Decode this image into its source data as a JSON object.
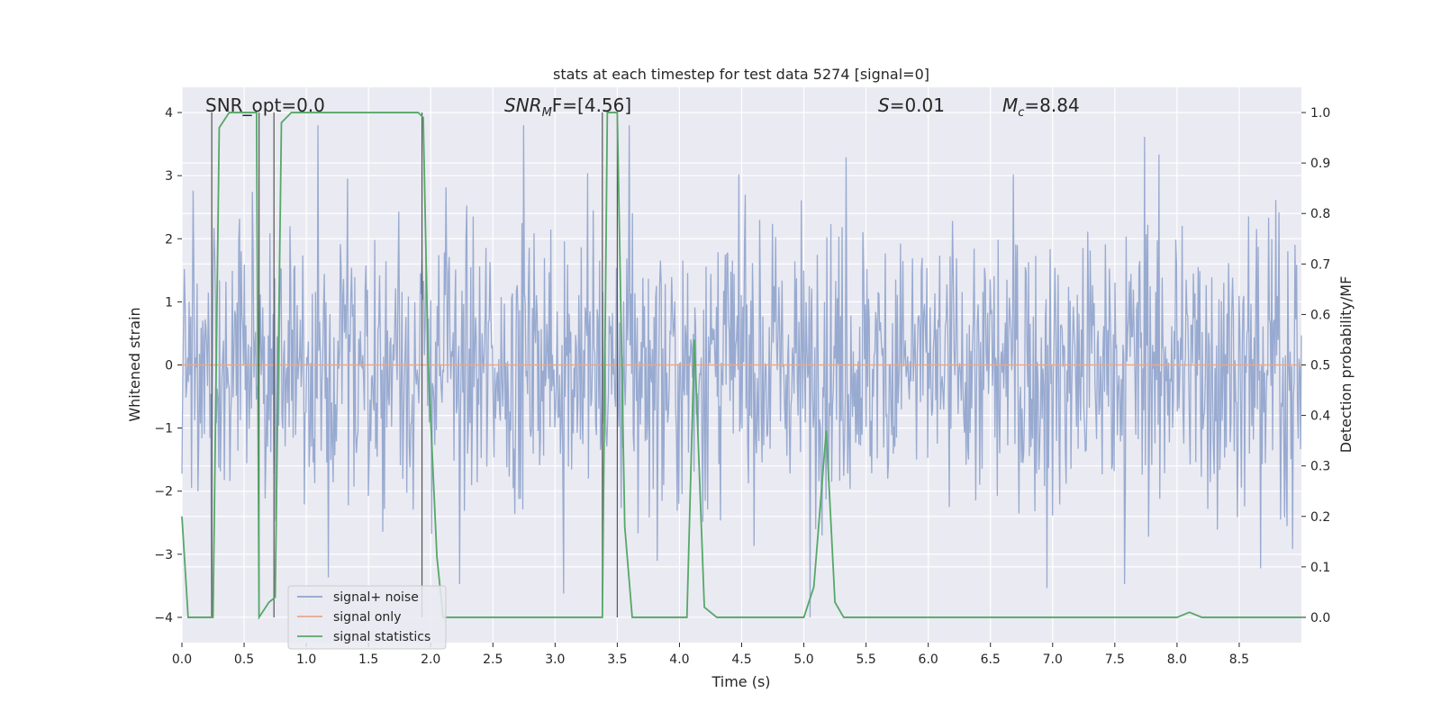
{
  "chart_data": {
    "type": "line",
    "title": "stats at each timestep for test data 5274 [signal=0]",
    "xlabel": "Time (s)",
    "ylabel_left": "Whitened strain",
    "ylabel_right": "Detection probability/MF",
    "xlim": [
      0.0,
      9.0
    ],
    "ylim_left": [
      -4.4,
      4.4
    ],
    "ylim_right": [
      -0.05,
      1.05
    ],
    "x_ticks": [
      "0.0",
      "0.5",
      "1.0",
      "1.5",
      "2.0",
      "2.5",
      "3.0",
      "3.5",
      "4.0",
      "4.5",
      "5.0",
      "5.5",
      "6.0",
      "6.5",
      "7.0",
      "7.5",
      "8.0",
      "8.5"
    ],
    "x_tick_values": [
      0.0,
      0.5,
      1.0,
      1.5,
      2.0,
      2.5,
      3.0,
      3.5,
      4.0,
      4.5,
      5.0,
      5.5,
      6.0,
      6.5,
      7.0,
      7.5,
      8.0,
      8.5
    ],
    "y_left_ticks": [
      "−4",
      "−3",
      "−2",
      "−1",
      "0",
      "1",
      "2",
      "3",
      "4"
    ],
    "y_left_tick_values": [
      -4,
      -3,
      -2,
      -1,
      0,
      1,
      2,
      3,
      4
    ],
    "y_right_ticks": [
      "0.0",
      "0.1",
      "0.2",
      "0.3",
      "0.4",
      "0.5",
      "0.6",
      "0.7",
      "0.8",
      "0.9",
      "1.0"
    ],
    "y_right_tick_values": [
      0.0,
      0.1,
      0.2,
      0.3,
      0.4,
      0.5,
      0.6,
      0.7,
      0.8,
      0.9,
      1.0
    ],
    "grid": true,
    "legend_position": "lower-left",
    "annotations": {
      "snr_opt": "SNR_opt=0.0",
      "snr_mf_prefix": "SNR",
      "snr_mf_sub": "M",
      "snr_mf_rest": "F=[4.56]",
      "s_symbol": "S",
      "s_value": "=0.01",
      "mc_symbol": "M",
      "mc_sub": "c",
      "mc_value": "=8.84"
    },
    "series": [
      {
        "name": "signal+ noise",
        "color": "#8fa3cc",
        "axis": "left",
        "amplitude_range": [
          -4.0,
          3.8
        ]
      },
      {
        "name": "signal only",
        "color": "#e8a88a",
        "axis": "left",
        "values": 0.0
      },
      {
        "name": "signal statistics",
        "color": "#55a868",
        "axis": "right",
        "x": [
          0.0,
          0.05,
          0.25,
          0.3,
          0.38,
          0.6,
          0.62,
          0.7,
          0.75,
          0.8,
          0.88,
          1.0,
          1.5,
          1.9,
          1.94,
          1.98,
          2.05,
          2.1,
          2.3,
          2.5,
          3.0,
          3.3,
          3.38,
          3.42,
          3.5,
          3.56,
          3.62,
          3.7,
          4.0,
          4.06,
          4.12,
          4.2,
          4.3,
          5.0,
          5.08,
          5.18,
          5.25,
          5.32,
          5.5,
          6.0,
          6.2,
          6.5,
          7.0,
          7.5,
          8.0,
          8.1,
          8.2,
          9.0
        ],
        "y": [
          0.2,
          0.0,
          0.0,
          0.97,
          1.0,
          1.0,
          0.0,
          0.03,
          0.04,
          0.98,
          1.0,
          1.0,
          1.0,
          1.0,
          0.99,
          0.5,
          0.12,
          0.0,
          0.0,
          0.0,
          0.0,
          0.0,
          0.0,
          1.0,
          1.0,
          0.18,
          0.0,
          0.0,
          0.0,
          0.0,
          0.55,
          0.02,
          0.0,
          0.0,
          0.06,
          0.37,
          0.03,
          0.0,
          0.0,
          0.0,
          0.0,
          0.0,
          0.0,
          0.0,
          0.0,
          0.01,
          0.0,
          0.0
        ]
      }
    ],
    "vertical_markers_x": [
      0.24,
      0.62,
      0.74,
      1.93,
      3.38,
      3.5
    ]
  }
}
